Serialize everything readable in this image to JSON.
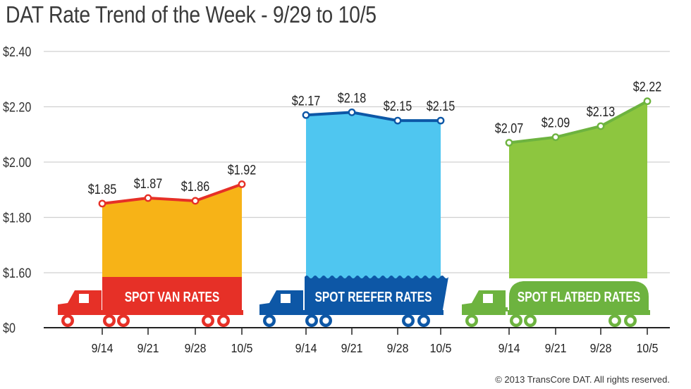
{
  "title": "DAT Rate Trend of the Week - 9/29 to 10/5",
  "copyright": "© 2013 TransCore DAT. All rights reserved.",
  "chart_data": {
    "type": "area",
    "title": "DAT Rate Trend of the Week - 9/29 to 10/5",
    "ylim": [
      0,
      2.4
    ],
    "yticks": [
      "$0",
      "$1.60",
      "$1.80",
      "$2.00",
      "$2.20",
      "$2.40"
    ],
    "grid": true,
    "groups": [
      {
        "label": "SPOT VAN RATES",
        "fill": "#f7b317",
        "line": "#e63027",
        "banner": "#e63027",
        "dates": [
          "9/14",
          "9/21",
          "9/28",
          "10/5"
        ],
        "values": [
          1.85,
          1.87,
          1.86,
          1.92
        ],
        "value_labels": [
          "$1.85",
          "$1.87",
          "$1.86",
          "$1.92"
        ]
      },
      {
        "label": "SPOT REEFER RATES",
        "fill": "#4fc6f0",
        "line": "#0d57a6",
        "banner": "#0d57a6",
        "dates": [
          "9/14",
          "9/21",
          "9/28",
          "10/5"
        ],
        "values": [
          2.17,
          2.18,
          2.15,
          2.15
        ],
        "value_labels": [
          "$2.17",
          "$2.18",
          "$2.15",
          "$2.15"
        ]
      },
      {
        "label": "SPOT FLATBED RATES",
        "fill": "#8dc63f",
        "line": "#6db33f",
        "banner": "#6db33f",
        "dates": [
          "9/14",
          "9/21",
          "9/28",
          "10/5"
        ],
        "values": [
          2.07,
          2.09,
          2.13,
          2.22
        ],
        "value_labels": [
          "$2.07",
          "$2.09",
          "$2.13",
          "$2.22"
        ]
      }
    ]
  }
}
